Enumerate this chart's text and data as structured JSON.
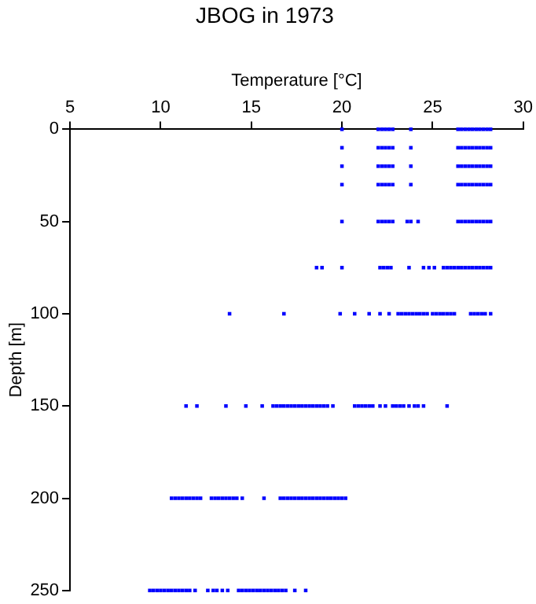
{
  "chart_data": {
    "type": "scatter",
    "title": "JBOG in 1973",
    "xlabel": "Temperature [°C]",
    "ylabel": "Depth [m]",
    "xlim": [
      5,
      30
    ],
    "xticks": [
      5,
      10,
      15,
      20,
      25,
      30
    ],
    "ylim": [
      250,
      0
    ],
    "yticks": [
      0,
      50,
      100,
      150,
      200,
      250
    ],
    "grid": false,
    "legend": false,
    "marker": "square",
    "series": [
      {
        "color": "#0000ff",
        "x": [
          20.0,
          22.0,
          22.2,
          22.4,
          22.6,
          22.8,
          23.8,
          26.4,
          26.6,
          26.8,
          27.0,
          27.2,
          27.4,
          27.6,
          27.8,
          28.0,
          28.2
        ],
        "values": [
          0,
          0,
          0,
          0,
          0,
          0,
          0,
          0,
          0,
          0,
          0,
          0,
          0,
          0,
          0,
          0,
          0
        ]
      },
      {
        "color": "#0000ff",
        "x": [
          20.0,
          22.0,
          22.2,
          22.4,
          22.6,
          22.8,
          23.8,
          26.4,
          26.6,
          26.8,
          27.0,
          27.2,
          27.4,
          27.6,
          27.8,
          28.0,
          28.2
        ],
        "values": [
          10,
          10,
          10,
          10,
          10,
          10,
          10,
          10,
          10,
          10,
          10,
          10,
          10,
          10,
          10,
          10,
          10
        ]
      },
      {
        "color": "#0000ff",
        "x": [
          20.0,
          22.0,
          22.2,
          22.4,
          22.6,
          22.8,
          23.8,
          26.4,
          26.6,
          26.8,
          27.0,
          27.2,
          27.4,
          27.6,
          27.8,
          28.0,
          28.2
        ],
        "values": [
          20,
          20,
          20,
          20,
          20,
          20,
          20,
          20,
          20,
          20,
          20,
          20,
          20,
          20,
          20,
          20,
          20
        ]
      },
      {
        "color": "#0000ff",
        "x": [
          20.0,
          22.0,
          22.2,
          22.4,
          22.6,
          22.8,
          23.8,
          26.4,
          26.6,
          26.8,
          27.0,
          27.2,
          27.4,
          27.6,
          27.8,
          28.0,
          28.2
        ],
        "values": [
          30,
          30,
          30,
          30,
          30,
          30,
          30,
          30,
          30,
          30,
          30,
          30,
          30,
          30,
          30,
          30,
          30
        ]
      },
      {
        "color": "#0000ff",
        "x": [
          20.0,
          22.0,
          22.2,
          22.4,
          22.6,
          22.8,
          23.6,
          23.8,
          24.2,
          26.4,
          26.6,
          26.8,
          27.0,
          27.2,
          27.4,
          27.6,
          27.8,
          28.0,
          28.2
        ],
        "values": [
          50,
          50,
          50,
          50,
          50,
          50,
          50,
          50,
          50,
          50,
          50,
          50,
          50,
          50,
          50,
          50,
          50,
          50,
          50
        ]
      },
      {
        "color": "#0000ff",
        "x": [
          18.6,
          18.9,
          20.0,
          22.1,
          22.3,
          22.5,
          22.7,
          23.7,
          24.5,
          24.8,
          25.1,
          25.6,
          25.8,
          26.0,
          26.2,
          26.4,
          26.6,
          26.8,
          27.0,
          27.2,
          27.4,
          27.6,
          27.8,
          28.0,
          28.2
        ],
        "values": [
          75,
          75,
          75,
          75,
          75,
          75,
          75,
          75,
          75,
          75,
          75,
          75,
          75,
          75,
          75,
          75,
          75,
          75,
          75,
          75,
          75,
          75,
          75,
          75,
          75
        ]
      },
      {
        "color": "#0000ff",
        "x": [
          13.8,
          16.8,
          19.9,
          20.7,
          21.5,
          22.1,
          22.6,
          23.1,
          23.3,
          23.5,
          23.7,
          23.9,
          24.1,
          24.3,
          24.5,
          24.7,
          25.0,
          25.2,
          25.4,
          25.6,
          25.8,
          26.0,
          26.2,
          27.1,
          27.3,
          27.5,
          27.7,
          27.9,
          28.2
        ],
        "values": [
          100,
          100,
          100,
          100,
          100,
          100,
          100,
          100,
          100,
          100,
          100,
          100,
          100,
          100,
          100,
          100,
          100,
          100,
          100,
          100,
          100,
          100,
          100,
          100,
          100,
          100,
          100,
          100,
          100
        ]
      },
      {
        "color": "#0000ff",
        "x": [
          11.4,
          12.0,
          13.6,
          14.7,
          15.6,
          16.2,
          16.4,
          16.6,
          16.8,
          17.0,
          17.2,
          17.4,
          17.6,
          17.8,
          18.0,
          18.2,
          18.4,
          18.6,
          18.8,
          19.0,
          19.2,
          19.5,
          20.7,
          20.9,
          21.1,
          21.3,
          21.5,
          21.7,
          22.1,
          22.4,
          22.8,
          23.0,
          23.2,
          23.4,
          23.7,
          24.0,
          24.2,
          24.5,
          25.8
        ],
        "values": [
          150,
          150,
          150,
          150,
          150,
          150,
          150,
          150,
          150,
          150,
          150,
          150,
          150,
          150,
          150,
          150,
          150,
          150,
          150,
          150,
          150,
          150,
          150,
          150,
          150,
          150,
          150,
          150,
          150,
          150,
          150,
          150,
          150,
          150,
          150,
          150,
          150,
          150,
          150
        ]
      },
      {
        "color": "#0000ff",
        "x": [
          10.6,
          10.8,
          11.0,
          11.2,
          11.4,
          11.6,
          11.8,
          12.0,
          12.2,
          12.8,
          13.0,
          13.2,
          13.4,
          13.6,
          13.8,
          14.0,
          14.2,
          14.5,
          15.7,
          16.6,
          16.8,
          17.0,
          17.2,
          17.4,
          17.6,
          17.8,
          18.0,
          18.2,
          18.4,
          18.6,
          18.8,
          19.0,
          19.2,
          19.4,
          19.6,
          19.8,
          20.0,
          20.2
        ],
        "values": [
          200,
          200,
          200,
          200,
          200,
          200,
          200,
          200,
          200,
          200,
          200,
          200,
          200,
          200,
          200,
          200,
          200,
          200,
          200,
          200,
          200,
          200,
          200,
          200,
          200,
          200,
          200,
          200,
          200,
          200,
          200,
          200,
          200,
          200,
          200,
          200,
          200,
          200
        ]
      },
      {
        "color": "#0000ff",
        "x": [
          9.4,
          9.6,
          9.8,
          10.0,
          10.2,
          10.4,
          10.6,
          10.8,
          11.0,
          11.2,
          11.4,
          11.6,
          11.9,
          12.6,
          12.9,
          13.1,
          13.4,
          13.7,
          14.3,
          14.5,
          14.7,
          14.9,
          15.1,
          15.3,
          15.5,
          15.7,
          15.9,
          16.1,
          16.3,
          16.5,
          16.7,
          16.9,
          17.4,
          18.0
        ],
        "values": [
          250,
          250,
          250,
          250,
          250,
          250,
          250,
          250,
          250,
          250,
          250,
          250,
          250,
          250,
          250,
          250,
          250,
          250,
          250,
          250,
          250,
          250,
          250,
          250,
          250,
          250,
          250,
          250,
          250,
          250,
          250,
          250,
          250,
          250
        ]
      }
    ]
  }
}
